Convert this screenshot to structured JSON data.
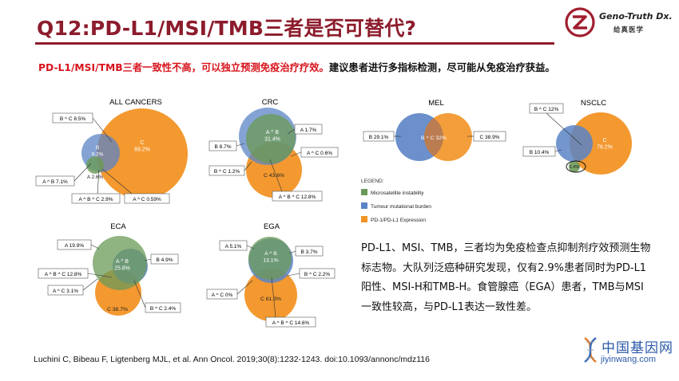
{
  "title": "Q12:PD-L1/MSI/TMB三者是否可替代?",
  "logo": {
    "name": "Geno-Truth Dx.",
    "sub": "给真医学",
    "accent": "#a01e2e"
  },
  "lead": {
    "red": "PD-L1/MSI/TMB三者一致性不高，可以独立预测免疫治疗疗效。",
    "black": "建议患者进行多指标检测，尽可能从免疫治疗获益。"
  },
  "colors": {
    "msi": "#6b9a58",
    "tmb": "#5b84c6",
    "pdl1": "#f29425",
    "title": "#8c1c2c",
    "lead_red": "#d8141c"
  },
  "diagrams": {
    "all": {
      "title": "ALL CANCERS",
      "c": "C\n69.2%",
      "b": "B\n9.2%",
      "a": "A 2.6%",
      "bc": "B ^ C 8.5%",
      "ab": "A ^ B 7.1%",
      "abc": "A ^ B ^ C 2.9%",
      "ac": "A ^ C 0.59%"
    },
    "crc": {
      "title": "CRC",
      "ab": "A ^ B\n31.4%",
      "a": "A 1.7%",
      "b": "B 8.7%",
      "ac": "A ^ C 0.6%",
      "bc": "B ^ C 1.2%",
      "c": "C 43.6%",
      "abc": "A ^ B ^ C 12.8%"
    },
    "mel": {
      "title": "MEL",
      "b": "B 29.1%",
      "bc": "B ^ C 32%",
      "c": "C 38.9%"
    },
    "nsclc": {
      "title": "NSCLC",
      "bc": "B ^ C 12%",
      "b": "B 10.4%",
      "c": "C\n76.2%",
      "inner": "1.4%"
    },
    "eca": {
      "title": "ECA",
      "a": "A 19.9%",
      "ab": "A ^ B\n25.8%",
      "b": "B 4.9%",
      "abc": "A ^ B ^ C 12.8%",
      "ac": "A ^ C 3.1%",
      "c": "C 38.7%",
      "bc": "B ^ C 2.4%"
    },
    "ega": {
      "title": "EGA",
      "a": "A 5.1%",
      "ab": "A ^ B\n13.1%",
      "b": "B 3.7%",
      "bc": "B ^ C 2.2%",
      "ac": "A ^ C 0%",
      "c": "C 61.3%",
      "abc": "A ^ B ^ C 14.6%"
    }
  },
  "legend": {
    "title": "LEGEND:",
    "items": [
      {
        "label": "Microsatellite instability",
        "color": "#6b9a58"
      },
      {
        "label": "Tumour mutational burden",
        "color": "#5b84c6"
      },
      {
        "label": "PD-1/PD-L1 Expression",
        "color": "#f29425"
      }
    ]
  },
  "paragraph": "PD-L1、MSI、TMB，三者均为免疫检查点抑制剂疗效预测生物标志物。大队列泛癌种研究发现，仅有2.9%患者同时为PD-L1阳性、MSI-H和TMB-H。食管腺癌（EGA）患者，TMB与MSI一致性较高，与PD-L1表达一致性差。",
  "citation": "Luchini C, Bibeau F, Ligtenberg MJL, et al. Ann Oncol. 2019;30(8):1232-1243. doi:10.1093/annonc/mdz116",
  "watermark": {
    "name": "中国基因网",
    "url": "jiyinwang.com",
    "icon": "dna-helix-icon"
  }
}
